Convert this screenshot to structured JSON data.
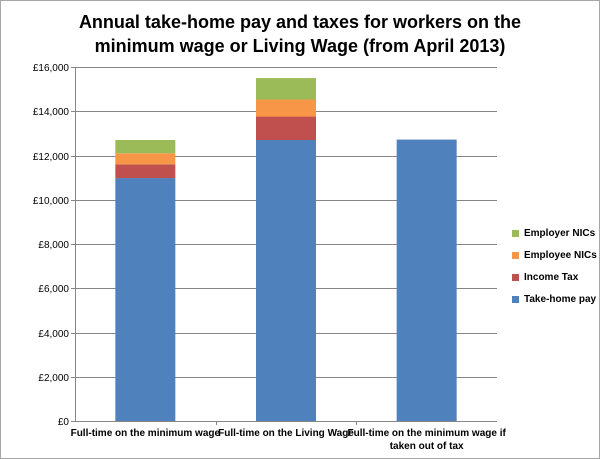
{
  "chart_data": {
    "type": "bar",
    "stacked": true,
    "title": "Annual take-home pay and taxes for workers on the minimum wage or Living Wage (from April 2013)",
    "title_lines": [
      "Annual take-home pay and taxes for workers on the",
      "minimum wage or Living Wage (from April 2013)"
    ],
    "xlabel": "",
    "ylabel": "",
    "ylim": [
      0,
      16000
    ],
    "y_ticks": [
      0,
      2000,
      4000,
      6000,
      8000,
      10000,
      12000,
      14000,
      16000
    ],
    "y_tick_labels": [
      "£0",
      "£2,000",
      "£4,000",
      "£6,000",
      "£8,000",
      "£10,000",
      "£12,000",
      "£14,000",
      "£16,000"
    ],
    "grid": true,
    "legend_position": "right",
    "categories": [
      [
        "Full-time on the minimum wage"
      ],
      [
        "Full-time on the Living Wage"
      ],
      [
        "Full-time on the minimum wage if",
        "taken out of tax"
      ]
    ],
    "series": [
      {
        "name": "Take-home pay",
        "color": "#4f81bd",
        "values": [
          10980,
          12700,
          12720
        ]
      },
      {
        "name": "Income Tax",
        "color": "#c0504d",
        "values": [
          620,
          1060,
          0
        ]
      },
      {
        "name": "Employee NICs",
        "color": "#f79646",
        "values": [
          500,
          770,
          0
        ]
      },
      {
        "name": "Employer NICs",
        "color": "#9bbb59",
        "values": [
          600,
          970,
          0
        ]
      }
    ],
    "legend_order": [
      "Employer NICs",
      "Employee NICs",
      "Income Tax",
      "Take-home pay"
    ]
  }
}
